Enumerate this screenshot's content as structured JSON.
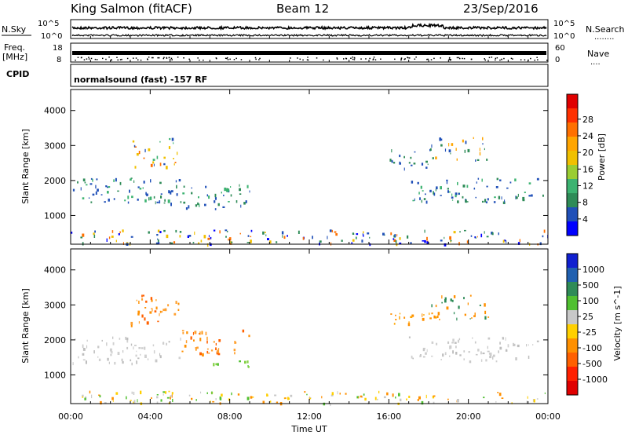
{
  "header": {
    "station": "King Salmon (fitACF)",
    "beam": "Beam 12",
    "date": "23/Sep/2016"
  },
  "top_panels": {
    "nsky_label": "N.Sky",
    "nsearch_label": "N.Search",
    "nsearch_dots": "........",
    "noise_ticks": [
      "10^5",
      "10^0"
    ],
    "freq_label": "Freq.",
    "freq_unit": "[MHz]",
    "freq_ticks": [
      "18",
      "8"
    ],
    "nave_ticks": [
      "60",
      "0"
    ],
    "nave_label": "Nave",
    "nave_dots": "....",
    "cpid_label": "CPID",
    "cpid_text": "normalsound (fast) -157 RF"
  },
  "x_axis": {
    "label": "Time UT",
    "ticks": [
      "00:00",
      "04:00",
      "08:00",
      "12:00",
      "16:00",
      "20:00",
      "00:00"
    ]
  },
  "chart_data": [
    {
      "type": "heatmap",
      "name": "power",
      "ylabel": "Slant Range [km]",
      "yticks": [
        "1000",
        "2000",
        "3000",
        "4000"
      ],
      "ylim": [
        180,
        4600
      ],
      "xlim_hours": [
        0,
        24
      ],
      "colorbar": {
        "label": "Power [dB]",
        "ticks": [
          "4",
          "8",
          "12",
          "16",
          "20",
          "24",
          "28"
        ],
        "colors": [
          "#0000ff",
          "#2050b8",
          "#2e8b57",
          "#3cb371",
          "#9acd32",
          "#f0c000",
          "#ffa500",
          "#ff7000",
          "#ff3000",
          "#e00000"
        ]
      },
      "regions": [
        {
          "t": [
            0.1,
            5.5
          ],
          "r": [
            1350,
            2100
          ],
          "cols": [
            "#2050b8",
            "#2e8b57",
            "#3cb371",
            "#2050b8"
          ]
        },
        {
          "t": [
            3.0,
            5.4
          ],
          "r": [
            2400,
            3300
          ],
          "cols": [
            "#2050b8",
            "#3cb371",
            "#f0c000",
            "#ff7000"
          ]
        },
        {
          "t": [
            5.5,
            9.0
          ],
          "r": [
            1200,
            1950
          ],
          "cols": [
            "#2050b8",
            "#2e8b57",
            "#3cb371"
          ]
        },
        {
          "t": [
            15.9,
            18.2
          ],
          "r": [
            2300,
            2900
          ],
          "cols": [
            "#2050b8",
            "#2e8b57"
          ]
        },
        {
          "t": [
            17.0,
            23.9
          ],
          "r": [
            1400,
            2100
          ],
          "cols": [
            "#2050b8",
            "#2e8b57",
            "#3cb371",
            "#2050b8"
          ]
        },
        {
          "t": [
            18.0,
            21.0
          ],
          "r": [
            2600,
            3300
          ],
          "cols": [
            "#2050b8",
            "#2e8b57",
            "#ffa500"
          ]
        },
        {
          "t": [
            0.0,
            24.0
          ],
          "r": [
            200,
            600
          ],
          "cols": [
            "#0000ff",
            "#2050b8",
            "#2e8b57",
            "#f0c000",
            "#ff7000"
          ]
        }
      ]
    },
    {
      "type": "heatmap",
      "name": "velocity",
      "ylabel": "Slant Range [km]",
      "yticks": [
        "1000",
        "2000",
        "3000",
        "4000"
      ],
      "ylim": [
        180,
        4600
      ],
      "xlim_hours": [
        0,
        24
      ],
      "colorbar": {
        "label": "Velocity [m s^-1]",
        "ticks": [
          "1000",
          "500",
          "100",
          "25",
          "-25",
          "-100",
          "-500",
          "-1000"
        ],
        "colors": [
          "#1020d0",
          "#2060b0",
          "#2e8b57",
          "#50c030",
          "#c8c8c8",
          "#ffd000",
          "#ff9000",
          "#ff6000",
          "#ff2000",
          "#e00000"
        ]
      },
      "regions": [
        {
          "t": [
            0.1,
            5.5
          ],
          "r": [
            1350,
            2100
          ],
          "cols": [
            "#c8c8c8",
            "#bdbdbd",
            "#d0d0d0"
          ]
        },
        {
          "t": [
            3.0,
            5.4
          ],
          "r": [
            2400,
            3300
          ],
          "cols": [
            "#ff9000",
            "#ff6000",
            "#ffa030"
          ]
        },
        {
          "t": [
            5.5,
            9.0
          ],
          "r": [
            1600,
            2300
          ],
          "cols": [
            "#ff9000",
            "#ff6000",
            "#ffa030"
          ]
        },
        {
          "t": [
            7.0,
            9.0
          ],
          "r": [
            1200,
            1450
          ],
          "cols": [
            "#50c030",
            "#80d040"
          ]
        },
        {
          "t": [
            15.9,
            18.5
          ],
          "r": [
            2400,
            2800
          ],
          "cols": [
            "#ffa500",
            "#ff9000"
          ]
        },
        {
          "t": [
            18.0,
            21.0
          ],
          "r": [
            2600,
            3300
          ],
          "cols": [
            "#2e8b57",
            "#ff9000"
          ]
        },
        {
          "t": [
            17.0,
            23.9
          ],
          "r": [
            1400,
            2100
          ],
          "cols": [
            "#c8c8c8",
            "#bdbdbd",
            "#d0d0d0"
          ]
        },
        {
          "t": [
            0.0,
            24.0
          ],
          "r": [
            200,
            550
          ],
          "cols": [
            "#c8c8c8",
            "#ffd000",
            "#50c030",
            "#ff9000"
          ]
        }
      ]
    }
  ]
}
